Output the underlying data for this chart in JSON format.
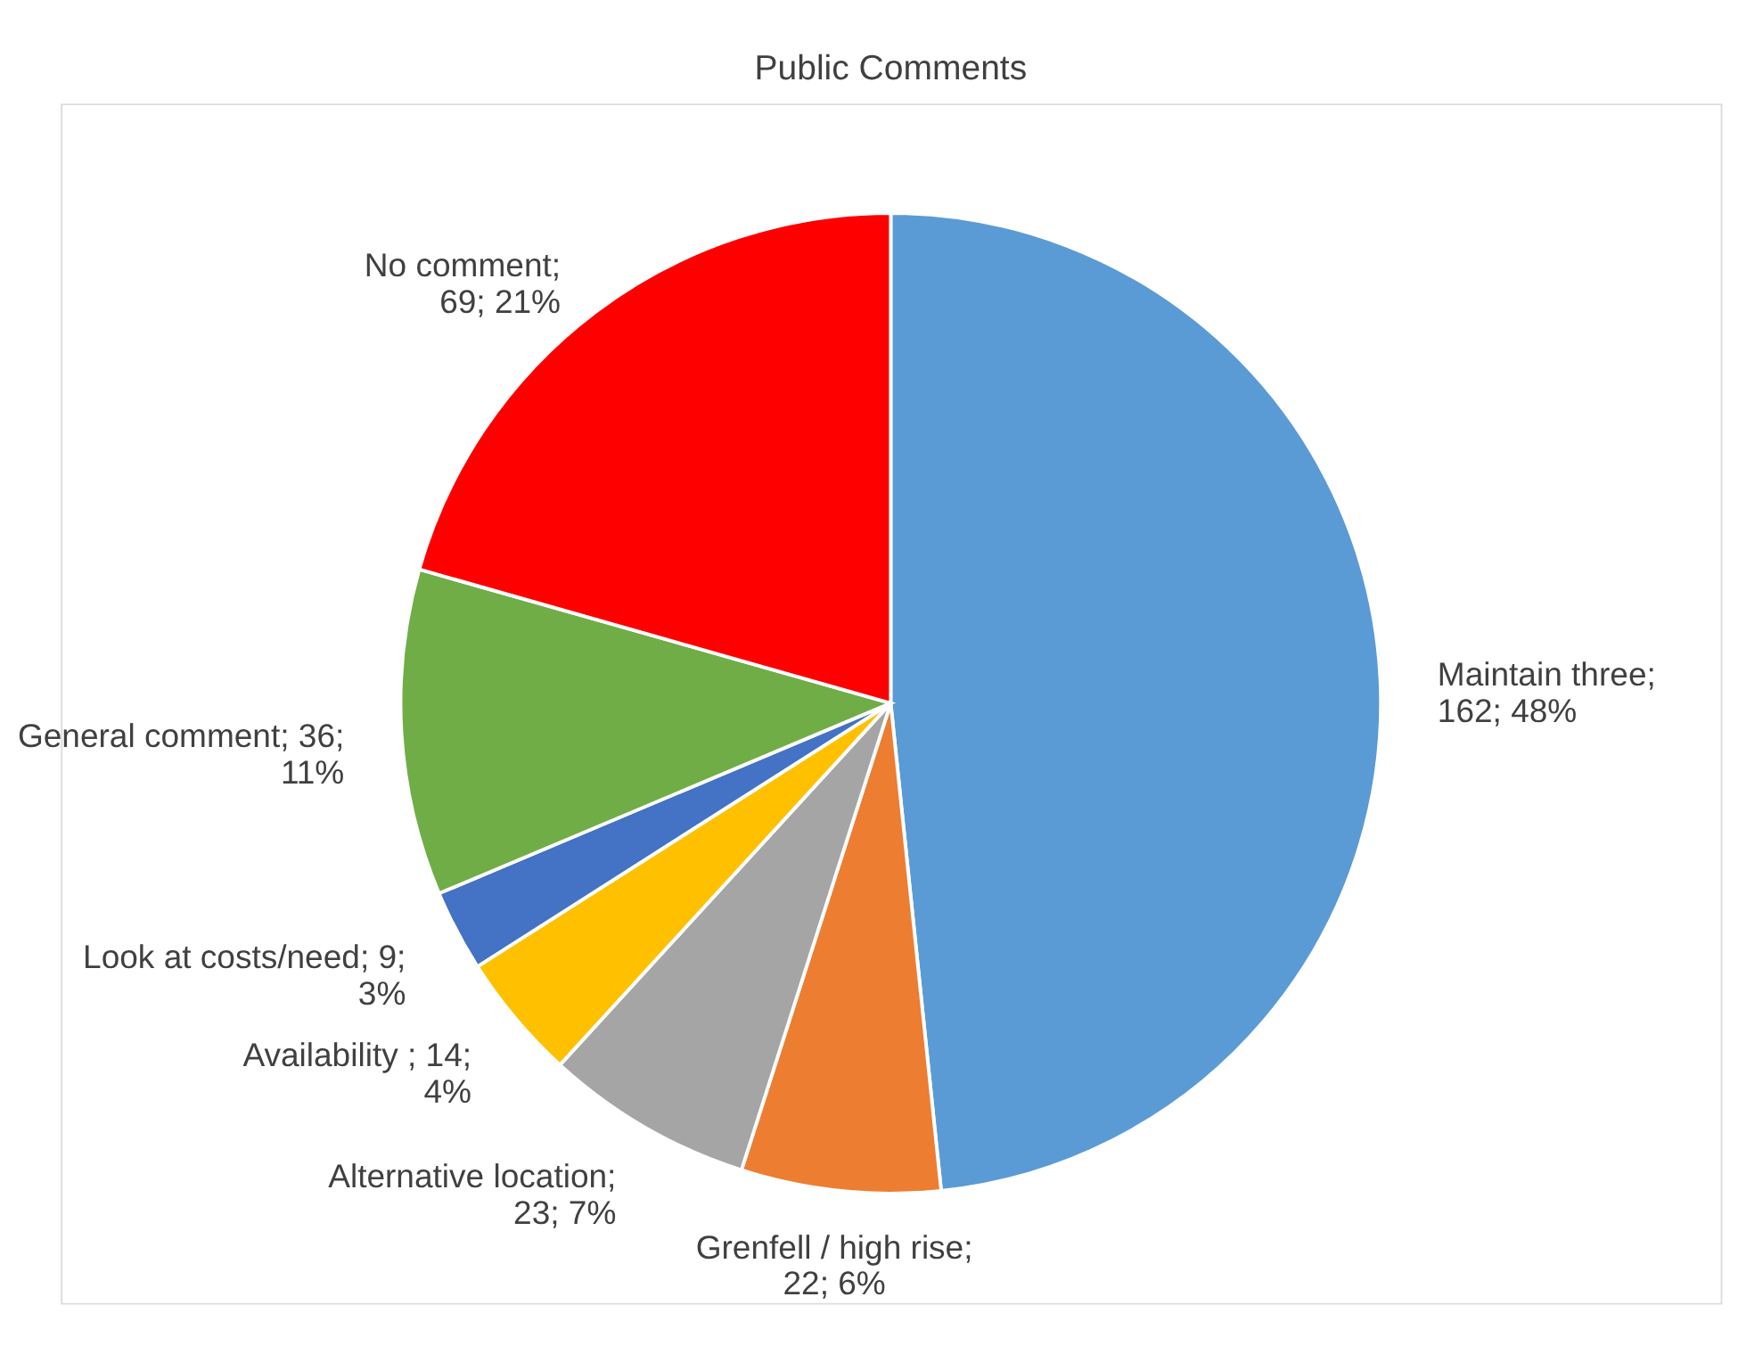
{
  "chart_data": {
    "type": "pie",
    "title": "Public Comments",
    "categories": [
      "Maintain three",
      "Grenfell / high rise",
      "Alternative location",
      "Availability",
      "Look at costs/need",
      "General comment",
      "No comment"
    ],
    "values": [
      162,
      22,
      23,
      14,
      9,
      36,
      69
    ],
    "colors": [
      "#5b9bd5",
      "#ed7d31",
      "#a5a5a5",
      "#ffc000",
      "#4472c4",
      "#70ad47",
      "#ff0000"
    ],
    "value_labels": [
      ";\n162; 48%",
      ";\n22; 6%",
      ";\n23; 7%",
      " ; 14;\n4%",
      "; 9;\n3%",
      "; 36;\n11%",
      ";\n69; 21%"
    ],
    "legend": false
  }
}
